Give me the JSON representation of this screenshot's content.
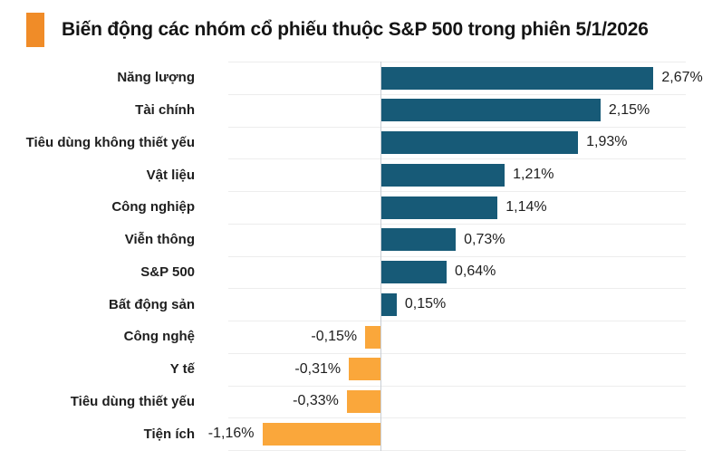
{
  "header": {
    "title": "Biến động các nhóm cổ phiếu thuộc S&P 500 trong phiên 5/1/2026",
    "accent_color": "#F08C28"
  },
  "chart_data": {
    "type": "bar",
    "orientation": "horizontal",
    "title": "Biến động các nhóm cổ phiếu thuộc S&P 500 trong phiên 5/1/2026",
    "categories": [
      "Năng lượng",
      "Tài chính",
      "Tiêu dùng không thiết yếu",
      "Vật liệu",
      "Công nghiệp",
      "Viễn thông",
      "S&P 500",
      "Bất động sản",
      "Công nghệ",
      "Y tế",
      "Tiêu dùng thiết yếu",
      "Tiện ích"
    ],
    "values": [
      2.67,
      2.15,
      1.93,
      1.21,
      1.14,
      0.73,
      0.64,
      0.15,
      -0.15,
      -0.31,
      -0.33,
      -1.16
    ],
    "value_labels": [
      "2,67%",
      "2,15%",
      "1,93%",
      "1,21%",
      "1,14%",
      "0,73%",
      "0,64%",
      "0,15%",
      "-0,15%",
      "-0,31%",
      "-0,33%",
      "-1,16%"
    ],
    "unit": "%",
    "decimal_separator": ",",
    "positive_color": "#175A77",
    "negative_color": "#FAA73B",
    "grid": "row-separators",
    "zero_line": true,
    "legend": "none",
    "xlim": [
      -1.5,
      3.0
    ]
  }
}
